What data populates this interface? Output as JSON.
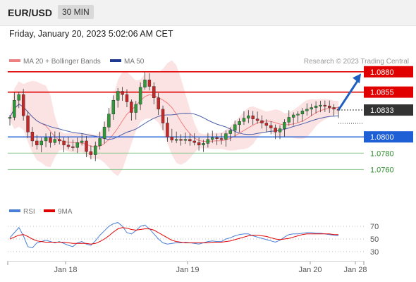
{
  "header": {
    "symbol": "EUR/USD",
    "timeframe": "30 MIN",
    "timestamp": "Friday, January 20, 2023 5:02:06 AM CET"
  },
  "chart_data": {
    "type": "candlestick",
    "instrument": "EUR/USD",
    "legend": [
      {
        "name": "MA 20 + Bollinger Bands",
        "color": "#f08080"
      },
      {
        "name": "MA 50",
        "color": "#1f3a93"
      }
    ],
    "attribution": "Research © 2023 Trading Central",
    "price_axis": {
      "min": 1.073,
      "max": 1.0885
    },
    "levels": [
      {
        "value": 1.088,
        "label": "1.0880",
        "color": "#e00000",
        "style": "resistance"
      },
      {
        "value": 1.0855,
        "label": "1.0855",
        "color": "#e00000",
        "style": "resistance"
      },
      {
        "value": 1.0833,
        "label": "1.0833",
        "color": "#333333",
        "style": "last"
      },
      {
        "value": 1.08,
        "label": "1.0800",
        "color": "#1f5fd6",
        "style": "pivot"
      },
      {
        "value": 1.078,
        "label": "1.0780",
        "color": "#2f8f2f",
        "style": "support"
      },
      {
        "value": 1.076,
        "label": "1.0760",
        "color": "#2f8f2f",
        "style": "support"
      }
    ],
    "forecast_arrow": {
      "from": 1.0833,
      "to": 1.0876,
      "color": "#1f5fbf"
    },
    "price_series": [
      1.0824,
      1.0845,
      1.0852,
      1.0826,
      1.0806,
      1.0795,
      1.079,
      1.0795,
      1.0799,
      1.0793,
      1.0797,
      1.0795,
      1.079,
      1.0788,
      1.0787,
      1.0793,
      1.0795,
      1.0782,
      1.0778,
      1.0789,
      1.0798,
      1.0812,
      1.0828,
      1.0845,
      1.0856,
      1.0852,
      1.0843,
      1.083,
      1.084,
      1.0861,
      1.087,
      1.0862,
      1.0848,
      1.0834,
      1.0817,
      1.08,
      1.0796,
      1.0797,
      1.0796,
      1.0797,
      1.0795,
      1.0793,
      1.079,
      1.0792,
      1.0797,
      1.0799,
      1.0798,
      1.0797,
      1.0804,
      1.0808,
      1.0815,
      1.0819,
      1.0823,
      1.0826,
      1.0822,
      1.082,
      1.0817,
      1.0814,
      1.0811,
      1.0806,
      1.081,
      1.0818,
      1.0824,
      1.0827,
      1.0828,
      1.0832,
      1.0834,
      1.0836,
      1.0838,
      1.0839,
      1.0838,
      1.0836,
      1.0834,
      1.0833
    ],
    "rsi": {
      "legend": [
        {
          "name": "RSI",
          "color": "#4a7fd6"
        },
        {
          "name": "9MA",
          "color": "#e00000"
        }
      ],
      "levels": [
        {
          "value": 70,
          "label": "70"
        },
        {
          "value": 50,
          "label": "50"
        },
        {
          "value": 30,
          "label": "30"
        }
      ],
      "range": [
        20,
        80
      ],
      "rsi_values": [
        52,
        60,
        68,
        55,
        38,
        36,
        44,
        46,
        48,
        46,
        44,
        46,
        43,
        40,
        38,
        44,
        46,
        42,
        40,
        47,
        56,
        63,
        70,
        74,
        76,
        70,
        60,
        58,
        63,
        70,
        72,
        66,
        58,
        50,
        44,
        42,
        43,
        44,
        44,
        45,
        44,
        43,
        42,
        44,
        46,
        47,
        46,
        46,
        50,
        52,
        55,
        57,
        58,
        58,
        55,
        53,
        51,
        49,
        47,
        45,
        48,
        53,
        57,
        58,
        58,
        59,
        60,
        60,
        59,
        59,
        58,
        57,
        56,
        55
      ],
      "ma_values": [
        50,
        53,
        56,
        57,
        54,
        50,
        47,
        46,
        45,
        45,
        45,
        45,
        45,
        44,
        43,
        43,
        43,
        43,
        42,
        43,
        46,
        50,
        55,
        61,
        66,
        68,
        67,
        65,
        64,
        65,
        66,
        66,
        64,
        60,
        56,
        52,
        48,
        46,
        45,
        44,
        44,
        44,
        44,
        44,
        44,
        45,
        45,
        45,
        46,
        47,
        49,
        51,
        53,
        55,
        56,
        56,
        55,
        54,
        52,
        50,
        49,
        50,
        51,
        53,
        55,
        57,
        58,
        58,
        58,
        58,
        58,
        58,
        57,
        57
      ]
    },
    "x_axis": {
      "ticks": [
        {
          "label": "Jan 18",
          "index": 9
        },
        {
          "label": "Jan 19",
          "index": 31
        },
        {
          "label": "Jan 20",
          "index": 53
        },
        {
          "label": "Jan 28",
          "index": 61
        }
      ]
    }
  }
}
